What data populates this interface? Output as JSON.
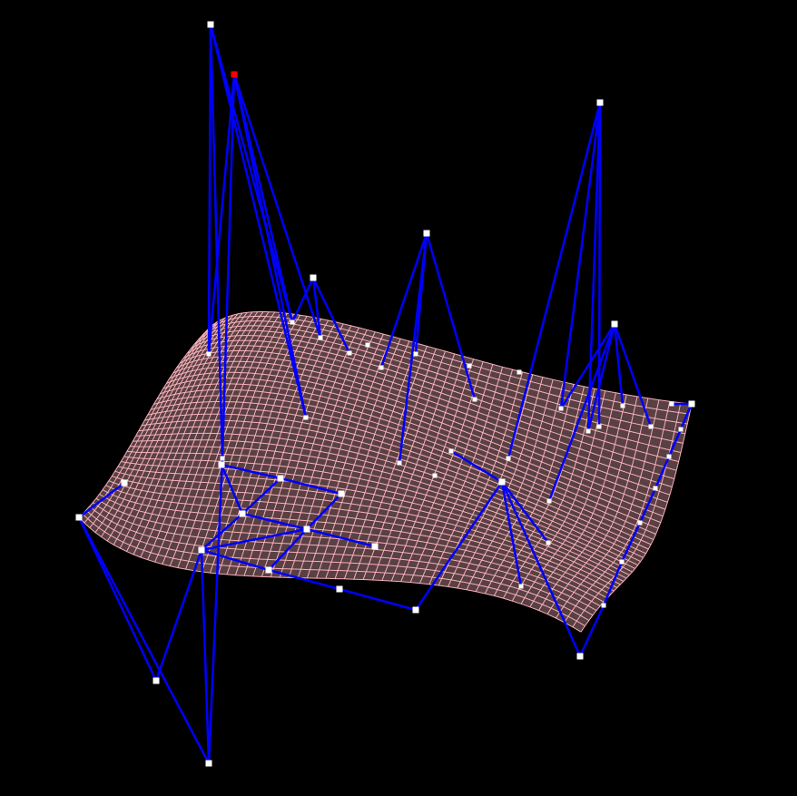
{
  "scene": {
    "background_color": "#000000",
    "surface_color": "#ffb6c1",
    "control_net_color": "#0000ff",
    "control_point_color": "#ffffff",
    "selected_point_color": "#ff0000",
    "surface_grid": {
      "u_lines": 60,
      "v_lines": 40
    }
  }
}
